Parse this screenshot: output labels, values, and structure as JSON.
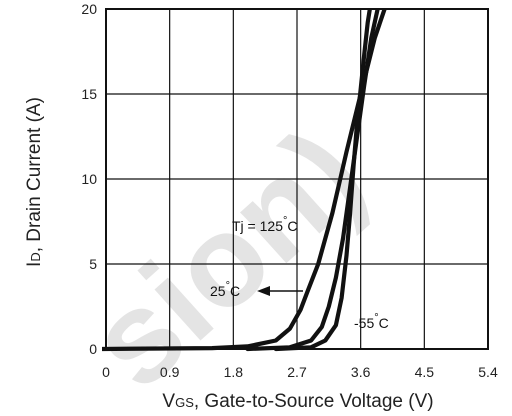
{
  "chart_data": {
    "type": "line",
    "title": "",
    "xlabel": "VGS, Gate-to-Source Voltage (V)",
    "xlabel_sub": {
      "main": "V",
      "sub": "GS",
      "rest": ", Gate-to-Source Voltage (V)"
    },
    "ylabel": "ID, Drain Current (A)",
    "ylabel_sub": {
      "main": "I",
      "sub": "D",
      "rest": ", Drain Current (A)"
    },
    "xlim": [
      0,
      5.4
    ],
    "ylim": [
      0,
      20
    ],
    "x_ticks": [
      "0",
      "0.9",
      "1.8",
      "2.7",
      "3.6",
      "4.5",
      "5.4"
    ],
    "x_tick_values": [
      0,
      0.9,
      1.8,
      2.7,
      3.6,
      4.5,
      5.4
    ],
    "y_ticks": [
      "0",
      "5",
      "10",
      "15",
      "20"
    ],
    "y_tick_values": [
      0,
      5,
      10,
      15,
      20
    ],
    "grid": true,
    "series": [
      {
        "name": "Tj = 125°C",
        "x": [
          -0.1,
          1.5,
          2.0,
          2.4,
          2.6,
          2.75,
          2.85,
          3.0,
          3.2,
          3.4,
          3.6,
          3.8,
          3.98
        ],
        "values": [
          0.0,
          0.05,
          0.15,
          0.5,
          1.2,
          2.3,
          3.4,
          5.0,
          8.0,
          11.6,
          15.0,
          18.3,
          20.5
        ]
      },
      {
        "name": "25°C",
        "x": [
          2.0,
          2.6,
          2.9,
          3.05,
          3.15,
          3.25,
          3.35,
          3.45,
          3.55,
          3.65,
          3.75,
          3.85,
          3.9
        ],
        "values": [
          0.0,
          0.1,
          0.5,
          1.3,
          2.5,
          4.2,
          6.5,
          9.5,
          12.5,
          15.5,
          18.3,
          20.2,
          20.8
        ]
      },
      {
        "name": "-55°C",
        "x": [
          2.4,
          2.9,
          3.1,
          3.25,
          3.33,
          3.4,
          3.45,
          3.5,
          3.55,
          3.6,
          3.65,
          3.7,
          3.76
        ],
        "values": [
          0.0,
          0.1,
          0.5,
          1.4,
          3.0,
          5.5,
          8.0,
          10.8,
          13.3,
          15.3,
          17.3,
          19.2,
          20.8
        ]
      }
    ],
    "annotations": [
      {
        "text": "Tj = 125",
        "degree": "°",
        "unit": "C"
      },
      {
        "text": "25",
        "degree": "°",
        "unit": "C"
      },
      {
        "text": "-55",
        "degree": "°",
        "unit": "C"
      }
    ],
    "watermark": "sion)"
  }
}
